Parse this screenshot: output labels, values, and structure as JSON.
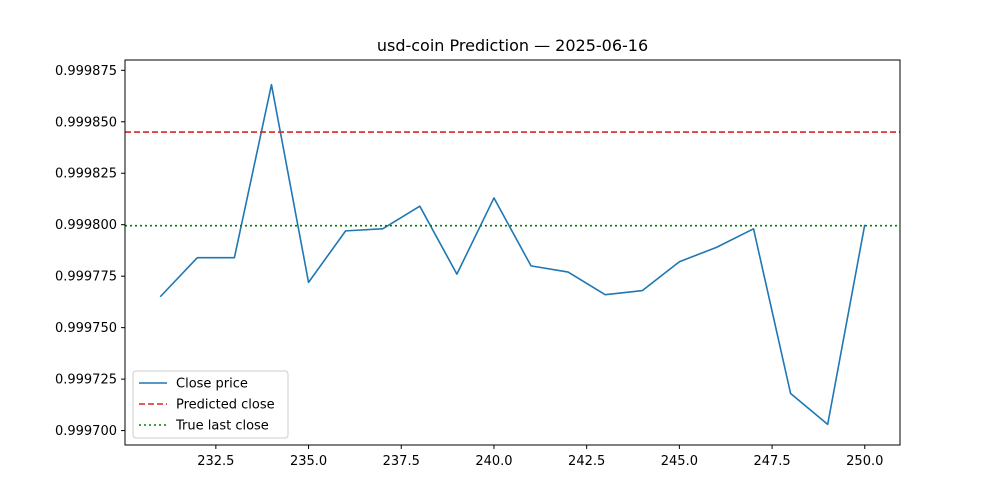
{
  "chart_data": {
    "type": "line",
    "title": "usd-coin Prediction — 2025-06-16",
    "xlabel": "",
    "ylabel": "",
    "xlim": [
      230.05,
      250.95
    ],
    "ylim": [
      0.999693,
      0.99988
    ],
    "x_ticks": [
      232.5,
      235.0,
      237.5,
      240.0,
      242.5,
      245.0,
      247.5,
      250.0
    ],
    "x_tick_labels": [
      "232.5",
      "235.0",
      "237.5",
      "240.0",
      "242.5",
      "245.0",
      "247.5",
      "250.0"
    ],
    "y_ticks": [
      0.9997,
      0.999725,
      0.99975,
      0.999775,
      0.9998,
      0.999825,
      0.99985,
      0.999875
    ],
    "y_tick_labels": [
      "0.999700",
      "0.999725",
      "0.999750",
      "0.999775",
      "0.999800",
      "0.999825",
      "0.999850",
      "0.999875"
    ],
    "grid": false,
    "legend_position": "lower-left",
    "series": [
      {
        "name": "Close price",
        "style": "solid",
        "color": "#1f77b4",
        "x": [
          231,
          232,
          233,
          234,
          235,
          236,
          237,
          238,
          239,
          240,
          241,
          242,
          243,
          244,
          245,
          246,
          247,
          248,
          249,
          250
        ],
        "values": [
          0.999765,
          0.999784,
          0.999784,
          0.999868,
          0.999772,
          0.999797,
          0.999798,
          0.999809,
          0.999776,
          0.999813,
          0.99978,
          0.999777,
          0.999766,
          0.999768,
          0.999782,
          0.999789,
          0.999798,
          0.999718,
          0.999703,
          0.9998
        ]
      },
      {
        "name": "Predicted close",
        "style": "dashed",
        "color": "#d62728",
        "hline": 0.999845
      },
      {
        "name": "True last close",
        "style": "dotted",
        "color": "#008000",
        "hline": 0.9997995
      }
    ]
  }
}
